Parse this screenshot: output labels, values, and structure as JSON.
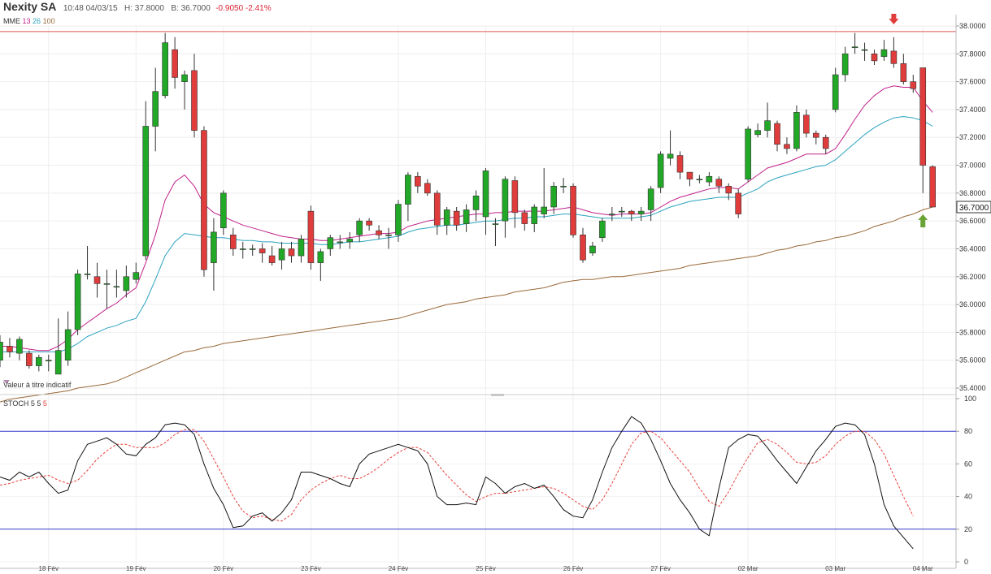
{
  "header": {
    "name": "Nexity SA",
    "time": "10:48 04/03/15",
    "high": "H: 37.8000",
    "low": "B: 36.7000",
    "change": "-0.9050 -2.41%"
  },
  "ma_legend": {
    "label": "MME",
    "p1": "13",
    "p2": "26",
    "p3": "100"
  },
  "stoch_legend": {
    "label": "STOCH",
    "k": "5",
    "d": "5",
    "s": "5"
  },
  "note": "Valeur à titre indicatif",
  "colors": {
    "up": "#22a827",
    "down": "#e03c3c",
    "ema13": "#c0208a",
    "ema26": "#2aa3bf",
    "ema100": "#9a6a3a",
    "stoch_k": "#111111",
    "stoch_d": "#e8413a",
    "level": "#3b3bd0",
    "resistance": "#e05555"
  },
  "chart_data": [
    {
      "type": "candlestick",
      "title": "Nexity SA",
      "ylim": [
        35.4,
        38.0
      ],
      "yticks": [
        "35.4000",
        "35.6000",
        "35.8000",
        "36.0000",
        "36.2000",
        "36.4000",
        "36.6000",
        "36.8000",
        "37.0000",
        "37.2000",
        "37.4000",
        "37.6000",
        "37.8000",
        "38.0000"
      ],
      "x_labels": [
        "18 Fév",
        "19 Fév",
        "20 Fév",
        "23 Fév",
        "24 Fév",
        "25 Fév",
        "26 Fév",
        "27 Fév",
        "02 Mar",
        "03 Mar",
        "04 Mar"
      ],
      "x_label_index": [
        5,
        14,
        23,
        32,
        41,
        50,
        59,
        68,
        77,
        86,
        95
      ],
      "last_price": "36.7000",
      "resistance": 37.96,
      "markers": [
        {
          "type": "down-arrow",
          "index": 92,
          "price": 38.05
        },
        {
          "type": "up-arrow",
          "index": 95,
          "price": 36.6
        }
      ],
      "candles": [
        [
          35.6,
          35.73,
          35.78,
          35.55
        ],
        [
          35.7,
          35.66,
          35.76,
          35.62
        ],
        [
          35.65,
          35.75,
          35.77,
          35.6
        ],
        [
          35.65,
          35.56,
          35.67,
          35.54
        ],
        [
          35.56,
          35.62,
          35.64,
          35.52
        ],
        [
          35.6,
          35.6,
          35.64,
          35.52
        ],
        [
          35.5,
          35.67,
          35.9,
          35.5
        ],
        [
          35.6,
          35.82,
          35.95,
          35.56
        ],
        [
          35.82,
          36.22,
          36.25,
          35.78
        ],
        [
          36.22,
          36.22,
          36.42,
          36.18
        ],
        [
          36.2,
          36.15,
          36.3,
          36.05
        ],
        [
          36.15,
          36.15,
          36.25,
          35.97
        ],
        [
          36.13,
          36.13,
          36.25,
          36.05
        ],
        [
          36.1,
          36.2,
          36.28,
          36.05
        ],
        [
          36.18,
          36.23,
          36.3,
          36.15
        ],
        [
          36.35,
          37.28,
          37.46,
          36.32
        ],
        [
          37.28,
          37.53,
          37.7,
          37.1
        ],
        [
          37.5,
          37.88,
          37.95,
          37.48
        ],
        [
          37.83,
          37.63,
          37.92,
          37.55
        ],
        [
          37.6,
          37.65,
          37.68,
          37.4
        ],
        [
          37.68,
          37.25,
          37.8,
          37.2
        ],
        [
          37.25,
          36.25,
          37.28,
          36.2
        ],
        [
          36.3,
          36.52,
          36.62,
          36.1
        ],
        [
          36.55,
          36.8,
          36.82,
          36.5
        ],
        [
          36.5,
          36.4,
          36.55,
          36.35
        ],
        [
          36.4,
          36.4,
          36.45,
          36.33
        ],
        [
          36.4,
          36.4,
          36.43,
          36.35
        ],
        [
          36.4,
          36.37,
          36.44,
          36.3
        ],
        [
          36.35,
          36.3,
          36.42,
          36.28
        ],
        [
          36.32,
          36.4,
          36.45,
          36.25
        ],
        [
          36.4,
          36.35,
          36.45,
          36.3
        ],
        [
          36.35,
          36.47,
          36.5,
          36.3
        ],
        [
          36.67,
          36.3,
          36.71,
          36.25
        ],
        [
          36.3,
          36.38,
          36.4,
          36.17
        ],
        [
          36.4,
          36.48,
          36.5,
          36.35
        ],
        [
          36.45,
          36.45,
          36.5,
          36.4
        ],
        [
          36.45,
          36.47,
          36.52,
          36.4
        ],
        [
          36.5,
          36.6,
          36.62,
          36.45
        ],
        [
          36.6,
          36.57,
          36.62,
          36.53
        ],
        [
          36.53,
          36.5,
          36.57,
          36.47
        ],
        [
          36.5,
          36.5,
          36.55,
          36.4
        ],
        [
          36.5,
          36.72,
          36.75,
          36.45
        ],
        [
          36.72,
          36.93,
          36.95,
          36.6
        ],
        [
          36.92,
          36.85,
          36.95,
          36.8
        ],
        [
          36.87,
          36.8,
          36.9,
          36.78
        ],
        [
          36.8,
          36.57,
          36.82,
          36.5
        ],
        [
          36.57,
          36.68,
          36.7,
          36.5
        ],
        [
          36.67,
          36.57,
          36.7,
          36.53
        ],
        [
          36.58,
          36.68,
          36.72,
          36.52
        ],
        [
          36.68,
          36.78,
          36.82,
          36.6
        ],
        [
          36.63,
          36.96,
          36.98,
          36.5
        ],
        [
          36.58,
          36.58,
          36.62,
          36.42
        ],
        [
          36.6,
          36.9,
          36.92,
          36.48
        ],
        [
          36.89,
          36.66,
          36.92,
          36.55
        ],
        [
          36.66,
          36.58,
          36.68,
          36.53
        ],
        [
          36.58,
          36.7,
          36.72,
          36.52
        ],
        [
          36.65,
          36.7,
          36.98,
          36.62
        ],
        [
          36.7,
          36.85,
          36.88,
          36.65
        ],
        [
          36.85,
          36.85,
          36.91,
          36.8
        ],
        [
          36.85,
          36.5,
          36.87,
          36.48
        ],
        [
          36.5,
          36.32,
          36.55,
          36.3
        ],
        [
          36.37,
          36.42,
          36.45,
          36.35
        ],
        [
          36.48,
          36.6,
          36.62,
          36.45
        ],
        [
          36.65,
          36.65,
          36.7,
          36.6
        ],
        [
          36.67,
          36.67,
          36.7,
          36.63
        ],
        [
          36.67,
          36.65,
          36.68,
          36.6
        ],
        [
          36.65,
          36.67,
          36.7,
          36.6
        ],
        [
          36.68,
          36.83,
          36.85,
          36.6
        ],
        [
          36.84,
          37.08,
          37.1,
          36.8
        ],
        [
          37.05,
          37.08,
          37.25,
          37.0
        ],
        [
          37.07,
          36.95,
          37.1,
          36.9
        ],
        [
          36.95,
          36.9,
          36.95,
          36.85
        ],
        [
          36.9,
          36.9,
          36.93,
          36.87
        ],
        [
          36.88,
          36.92,
          36.95,
          36.85
        ],
        [
          36.9,
          36.85,
          36.92,
          36.8
        ],
        [
          36.85,
          36.8,
          36.87,
          36.75
        ],
        [
          36.8,
          36.65,
          36.83,
          36.62
        ],
        [
          36.9,
          37.26,
          37.28,
          36.88
        ],
        [
          37.22,
          37.25,
          37.3,
          37.2
        ],
        [
          37.25,
          37.32,
          37.45,
          37.2
        ],
        [
          37.3,
          37.15,
          37.32,
          37.1
        ],
        [
          37.15,
          37.12,
          37.2,
          37.08
        ],
        [
          37.12,
          37.38,
          37.43,
          37.1
        ],
        [
          37.36,
          37.23,
          37.4,
          37.2
        ],
        [
          37.23,
          37.2,
          37.25,
          37.15
        ],
        [
          37.2,
          37.12,
          37.22,
          37.08
        ],
        [
          37.4,
          37.65,
          37.7,
          37.38
        ],
        [
          37.65,
          37.8,
          37.85,
          37.6
        ],
        [
          37.85,
          37.85,
          37.95,
          37.8
        ],
        [
          37.83,
          37.83,
          37.88,
          37.75
        ],
        [
          37.8,
          37.75,
          37.83,
          37.72
        ],
        [
          37.78,
          37.83,
          37.9,
          37.75
        ],
        [
          37.82,
          37.73,
          37.92,
          37.7
        ],
        [
          37.73,
          37.6,
          37.8,
          37.58
        ],
        [
          37.6,
          37.55,
          37.65,
          37.52
        ],
        [
          37.7,
          37.0,
          37.7,
          36.8
        ],
        [
          36.99,
          36.7,
          37.0,
          36.7
        ]
      ],
      "ema13": [
        35.7,
        35.7,
        35.69,
        35.68,
        35.67,
        35.67,
        35.7,
        35.75,
        35.82,
        35.87,
        35.92,
        35.97,
        36.01,
        36.07,
        36.12,
        36.3,
        36.5,
        36.75,
        36.88,
        36.93,
        36.85,
        36.72,
        36.66,
        36.63,
        36.6,
        36.57,
        36.55,
        36.53,
        36.51,
        36.49,
        36.48,
        36.47,
        36.47,
        36.46,
        36.46,
        36.47,
        36.48,
        36.49,
        36.5,
        36.51,
        36.51,
        36.52,
        36.56,
        36.58,
        36.6,
        36.61,
        36.62,
        36.63,
        36.64,
        36.65,
        36.65,
        36.66,
        36.66,
        36.67,
        36.67,
        36.67,
        36.67,
        36.68,
        36.69,
        36.7,
        36.68,
        36.66,
        36.65,
        36.64,
        36.65,
        36.65,
        36.65,
        36.66,
        36.7,
        36.74,
        36.77,
        36.79,
        36.81,
        36.83,
        36.84,
        36.84,
        36.83,
        36.88,
        36.93,
        36.98,
        37.0,
        37.02,
        37.05,
        37.08,
        37.08,
        37.08,
        37.12,
        37.22,
        37.33,
        37.43,
        37.5,
        37.55,
        37.57,
        37.56,
        37.56,
        37.46,
        37.38
      ],
      "ema26": [
        35.66,
        35.66,
        35.66,
        35.66,
        35.66,
        35.66,
        35.66,
        35.68,
        35.72,
        35.77,
        35.8,
        35.83,
        35.85,
        35.88,
        35.9,
        36.02,
        36.18,
        36.35,
        36.45,
        36.51,
        36.5,
        36.49,
        36.48,
        36.48,
        36.47,
        36.46,
        36.46,
        36.45,
        36.45,
        36.44,
        36.44,
        36.44,
        36.44,
        36.43,
        36.43,
        36.44,
        36.45,
        36.45,
        36.46,
        36.47,
        36.48,
        36.49,
        36.52,
        36.54,
        36.55,
        36.56,
        36.57,
        36.57,
        36.58,
        36.59,
        36.6,
        36.6,
        36.61,
        36.62,
        36.62,
        36.63,
        36.63,
        36.64,
        36.65,
        36.65,
        36.64,
        36.63,
        36.62,
        36.62,
        36.62,
        36.62,
        36.63,
        36.64,
        36.67,
        36.7,
        36.72,
        36.74,
        36.75,
        36.76,
        36.77,
        36.77,
        36.77,
        36.8,
        36.83,
        36.88,
        36.91,
        36.93,
        36.95,
        36.97,
        36.99,
        37.0,
        37.04,
        37.1,
        37.16,
        37.22,
        37.27,
        37.31,
        37.34,
        37.35,
        37.34,
        37.32,
        37.28
      ],
      "ema100": [
        35.3,
        35.32,
        35.33,
        35.34,
        35.35,
        35.36,
        35.37,
        35.38,
        35.4,
        35.41,
        35.42,
        35.43,
        35.45,
        35.48,
        35.51,
        35.54,
        35.57,
        35.6,
        35.63,
        35.66,
        35.67,
        35.69,
        35.7,
        35.72,
        35.73,
        35.74,
        35.75,
        35.76,
        35.77,
        35.78,
        35.79,
        35.8,
        35.81,
        35.82,
        35.83,
        35.84,
        35.85,
        35.86,
        35.87,
        35.88,
        35.89,
        35.9,
        35.92,
        35.94,
        35.96,
        35.98,
        36.0,
        36.01,
        36.02,
        36.04,
        36.05,
        36.06,
        36.07,
        36.09,
        36.1,
        36.11,
        36.12,
        36.14,
        36.16,
        36.17,
        36.18,
        36.18,
        36.19,
        36.2,
        36.2,
        36.21,
        36.22,
        36.23,
        36.24,
        36.25,
        36.26,
        36.28,
        36.29,
        36.3,
        36.31,
        36.32,
        36.33,
        36.34,
        36.35,
        36.37,
        36.39,
        36.4,
        36.42,
        36.43,
        36.45,
        36.46,
        36.48,
        36.49,
        36.51,
        36.53,
        36.56,
        36.58,
        36.6,
        36.63,
        36.65,
        36.68,
        36.7
      ]
    },
    {
      "type": "line",
      "title": "STOCH 5 5 5",
      "ylim": [
        0,
        100
      ],
      "yticks": [
        "0",
        "20",
        "40",
        "60",
        "80",
        "100"
      ],
      "levels": [
        20,
        80
      ],
      "series": [
        {
          "name": "%K",
          "values": [
            52,
            50,
            55,
            52,
            55,
            48,
            42,
            44,
            62,
            72,
            74,
            76,
            72,
            66,
            65,
            72,
            76,
            84,
            85,
            84,
            78,
            60,
            45,
            35,
            21,
            22,
            28,
            30,
            25,
            30,
            38,
            55,
            55,
            53,
            51,
            48,
            46,
            60,
            66,
            68,
            70,
            72,
            70,
            68,
            60,
            40,
            35,
            35,
            36,
            35,
            52,
            48,
            42,
            46,
            48,
            45,
            47,
            40,
            32,
            28,
            27,
            38,
            55,
            70,
            80,
            89,
            85,
            75,
            62,
            48,
            38,
            30,
            20,
            16,
            45,
            70,
            75,
            78,
            77,
            70,
            62,
            55,
            48,
            58,
            68,
            75,
            83,
            85,
            84,
            78,
            60,
            35,
            22,
            15,
            8
          ]
        },
        {
          "name": "%D",
          "values": [
            47,
            48,
            50,
            51,
            52,
            53,
            50,
            48,
            50,
            56,
            63,
            68,
            72,
            72,
            70,
            70,
            70,
            73,
            78,
            81,
            81,
            74,
            63,
            52,
            40,
            31,
            27,
            28,
            26,
            25,
            29,
            38,
            44,
            48,
            51,
            53,
            51,
            51,
            54,
            58,
            63,
            67,
            70,
            70,
            67,
            60,
            53,
            47,
            41,
            37,
            40,
            42,
            42,
            43,
            44,
            45,
            46,
            45,
            42,
            38,
            34,
            32,
            38,
            48,
            60,
            72,
            79,
            80,
            76,
            69,
            62,
            55,
            45,
            37,
            34,
            43,
            54,
            64,
            73,
            75,
            72,
            67,
            61,
            60,
            61,
            65,
            72,
            77,
            80,
            80,
            75,
            66,
            53,
            40,
            28
          ]
        }
      ]
    }
  ]
}
